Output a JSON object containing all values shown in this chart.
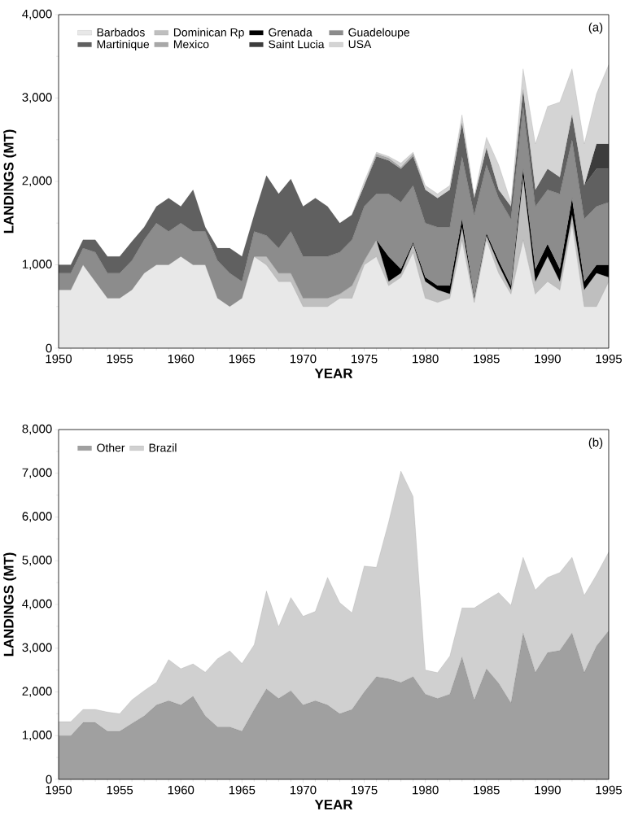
{
  "chart_data": [
    {
      "type": "area",
      "stacked": true,
      "xlabel": "YEAR",
      "ylabel": "LANDINGS (MT)",
      "annotations": [
        "(a)"
      ],
      "legend": "top left",
      "x": [
        1950,
        1951,
        1952,
        1953,
        1954,
        1955,
        1956,
        1957,
        1958,
        1959,
        1960,
        1961,
        1962,
        1963,
        1964,
        1965,
        1966,
        1967,
        1968,
        1969,
        1970,
        1971,
        1972,
        1973,
        1974,
        1975,
        1976,
        1977,
        1978,
        1979,
        1980,
        1981,
        1982,
        1983,
        1984,
        1985,
        1986,
        1987,
        1988,
        1989,
        1990,
        1991,
        1992,
        1993,
        1994,
        1995
      ],
      "xlim": [
        1950,
        1995
      ],
      "ylim": [
        0,
        4000
      ],
      "xticks": [
        1950,
        1955,
        1960,
        1965,
        1970,
        1975,
        1980,
        1985,
        1990,
        1995
      ],
      "yticks": [
        0,
        {
          "value": 1000,
          "label": "1,000"
        },
        {
          "value": 2000,
          "label": "2,000"
        },
        {
          "value": 3000,
          "label": "3,000"
        },
        {
          "value": 4000,
          "label": "4,000"
        }
      ],
      "series": [
        {
          "name": "Barbados",
          "color": "#e8e8e8",
          "values": [
            700,
            700,
            1000,
            800,
            600,
            600,
            700,
            900,
            1000,
            1000,
            1100,
            1000,
            1000,
            600,
            500,
            600,
            1100,
            1000,
            800,
            800,
            500,
            500,
            500,
            600,
            600,
            1000,
            1100,
            750,
            850,
            1150,
            600,
            550,
            600,
            1300,
            550,
            1300,
            900,
            650,
            1300,
            650,
            800,
            700,
            1500,
            500,
            500,
            800
          ]
        },
        {
          "name": "Dominican Rp",
          "color": "#bfbfbf",
          "values": [
            null,
            null,
            null,
            null,
            null,
            null,
            null,
            null,
            null,
            null,
            null,
            null,
            null,
            null,
            null,
            null,
            0,
            100,
            100,
            100,
            100,
            100,
            100,
            50,
            150,
            50,
            200,
            50,
            50,
            100,
            200,
            150,
            50,
            150,
            50,
            50,
            100,
            50,
            750,
            150,
            300,
            100,
            100,
            200,
            400,
            50
          ]
        },
        {
          "name": "Grenada",
          "color": "#000000",
          "values": [
            null,
            null,
            null,
            null,
            null,
            null,
            null,
            null,
            null,
            null,
            null,
            null,
            null,
            null,
            null,
            null,
            null,
            null,
            null,
            null,
            null,
            null,
            null,
            null,
            null,
            null,
            0,
            300,
            50,
            20,
            50,
            50,
            100,
            100,
            20,
            30,
            50,
            50,
            100,
            150,
            150,
            150,
            200,
            100,
            100,
            150
          ]
        },
        {
          "name": "Guadeloupe",
          "color": "#8c8c8c",
          "values": [
            200,
            200,
            200,
            350,
            300,
            300,
            350,
            400,
            500,
            400,
            400,
            400,
            400,
            450,
            400,
            200,
            300,
            250,
            300,
            500,
            500,
            500,
            500,
            500,
            550,
            650,
            550,
            750,
            800,
            680,
            650,
            700,
            700,
            750,
            980,
            820,
            750,
            800,
            750,
            750,
            650,
            900,
            700,
            750,
            700,
            750
          ]
        },
        {
          "name": "Martinique",
          "color": "#606060",
          "values": [
            100,
            100,
            100,
            150,
            200,
            200,
            230,
            150,
            200,
            400,
            200,
            500,
            50,
            150,
            300,
            300,
            200,
            720,
            650,
            630,
            600,
            700,
            600,
            350,
            300,
            250,
            450,
            400,
            400,
            350,
            400,
            350,
            450,
            400,
            200,
            200,
            100,
            150,
            200,
            200,
            250,
            200,
            300,
            400,
            450,
            400
          ]
        },
        {
          "name": "Mexico",
          "color": "#a8a8a8",
          "values": [
            null,
            null,
            null,
            null,
            null,
            null,
            null,
            null,
            null,
            null,
            null,
            null,
            null,
            null,
            null,
            null,
            null,
            null,
            null,
            null,
            null,
            null,
            null,
            null,
            null,
            0,
            30,
            30,
            20,
            30,
            0,
            null,
            null,
            null,
            null,
            null,
            null,
            null,
            null,
            null,
            null,
            null,
            null,
            null,
            null,
            null
          ]
        },
        {
          "name": "Saint Lucia",
          "color": "#3c3c3c",
          "values": [
            null,
            null,
            null,
            null,
            null,
            null,
            null,
            null,
            null,
            null,
            null,
            null,
            null,
            null,
            null,
            null,
            null,
            null,
            null,
            null,
            null,
            null,
            null,
            null,
            null,
            null,
            null,
            null,
            null,
            null,
            null,
            null,
            null,
            null,
            null,
            null,
            null,
            null,
            null,
            null,
            null,
            null,
            null,
            0,
            300,
            300
          ]
        },
        {
          "name": "USA",
          "color": "#d4d4d4",
          "values": [
            null,
            null,
            null,
            null,
            null,
            null,
            null,
            null,
            null,
            null,
            null,
            null,
            null,
            null,
            null,
            null,
            null,
            null,
            null,
            null,
            null,
            null,
            null,
            null,
            0,
            50,
            20,
            20,
            50,
            20,
            50,
            50,
            50,
            100,
            20,
            130,
            300,
            50,
            250,
            550,
            750,
            900,
            550,
            500,
            600,
            950
          ]
        }
      ]
    },
    {
      "type": "area",
      "stacked": true,
      "xlabel": "YEAR",
      "ylabel": "LANDINGS (MT)",
      "annotations": [
        "(b)"
      ],
      "legend": "top left",
      "x": [
        1950,
        1951,
        1952,
        1953,
        1954,
        1955,
        1956,
        1957,
        1958,
        1959,
        1960,
        1961,
        1962,
        1963,
        1964,
        1965,
        1966,
        1967,
        1968,
        1969,
        1970,
        1971,
        1972,
        1973,
        1974,
        1975,
        1976,
        1977,
        1978,
        1979,
        1980,
        1981,
        1982,
        1983,
        1984,
        1985,
        1986,
        1987,
        1988,
        1989,
        1990,
        1991,
        1992,
        1993,
        1994,
        1995
      ],
      "xlim": [
        1950,
        1995
      ],
      "ylim": [
        0,
        8000
      ],
      "xticks": [
        1950,
        1955,
        1960,
        1965,
        1970,
        1975,
        1980,
        1985,
        1990,
        1995
      ],
      "yticks": [
        0,
        {
          "value": 1000,
          "label": "1,000"
        },
        {
          "value": 2000,
          "label": "2,000"
        },
        {
          "value": 3000,
          "label": "3,000"
        },
        {
          "value": 4000,
          "label": "4,000"
        },
        {
          "value": 5000,
          "label": "5,000"
        },
        {
          "value": 6000,
          "label": "6,000"
        },
        {
          "value": 7000,
          "label": "7,000"
        },
        {
          "value": 8000,
          "label": "8,000"
        }
      ],
      "series": [
        {
          "name": "Other",
          "color": "#a0a0a0",
          "values": [
            1000,
            1000,
            1300,
            1300,
            1100,
            1100,
            1280,
            1450,
            1700,
            1800,
            1700,
            1900,
            1450,
            1200,
            1200,
            1100,
            1600,
            2070,
            1850,
            2030,
            1700,
            1800,
            1700,
            1500,
            1600,
            2000,
            2350,
            2300,
            2220,
            2350,
            1950,
            1850,
            1950,
            2800,
            1820,
            2530,
            2200,
            1750,
            3350,
            2450,
            2900,
            2950,
            3350,
            2450,
            3050,
            3400
          ]
        },
        {
          "name": "Brazil",
          "color": "#d0d0d0",
          "values": [
            320,
            320,
            300,
            300,
            440,
            400,
            540,
            580,
            520,
            940,
            830,
            740,
            1000,
            1560,
            1740,
            1550,
            1480,
            2240,
            1640,
            2130,
            2030,
            2040,
            2920,
            2540,
            2210,
            2880,
            2500,
            3590,
            4830,
            4120,
            550,
            590,
            870,
            1120,
            2100,
            1570,
            2070,
            2230,
            1730,
            1880,
            1720,
            1780,
            1730,
            1760,
            1630,
            1800
          ]
        }
      ]
    }
  ]
}
